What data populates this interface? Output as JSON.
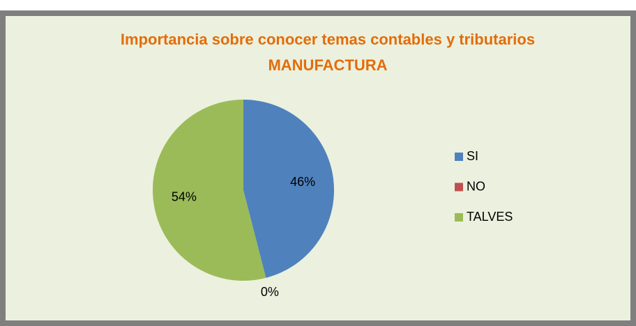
{
  "chart_data": {
    "type": "pie",
    "title": [
      "Importancia sobre conocer temas contables y tributarios",
      "MANUFACTURA"
    ],
    "categories": [
      "SI",
      "NO",
      "TALVES"
    ],
    "values": [
      46,
      0,
      54
    ],
    "value_labels": [
      "46%",
      "0%",
      "54%"
    ],
    "colors": [
      "#4f81bd",
      "#c0504d",
      "#9bbb59"
    ],
    "legend": "right"
  }
}
